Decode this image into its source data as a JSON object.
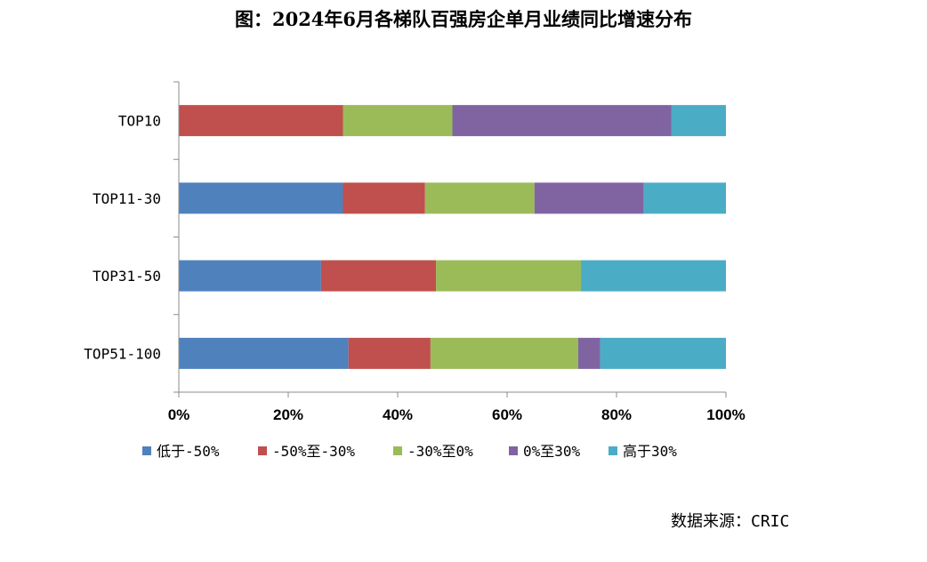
{
  "chart_data": {
    "type": "bar",
    "orientation": "horizontal",
    "stacked": true,
    "title": "图：2024年6月各梯队百强房企单月业绩同比增速分布",
    "categories": [
      "TOP10",
      "TOP11-30",
      "TOP31-50",
      "TOP51-100"
    ],
    "xticks": [
      "0%",
      "20%",
      "40%",
      "60%",
      "80%",
      "100%"
    ],
    "xlim": [
      0,
      100
    ],
    "legend_position": "bottom",
    "series": [
      {
        "name": "低于-50%",
        "color": "#4f81bd",
        "values": [
          0,
          30,
          26,
          31
        ]
      },
      {
        "name": "-50%至-30%",
        "color": "#c0504d",
        "values": [
          30,
          15,
          21,
          15
        ]
      },
      {
        "name": "-30%至0%",
        "color": "#9bbb59",
        "values": [
          20,
          20,
          26.5,
          27
        ]
      },
      {
        "name": "0%至30%",
        "color": "#8064a2",
        "values": [
          40,
          20,
          0,
          4
        ]
      },
      {
        "name": "高于30%",
        "color": "#4bacc6",
        "values": [
          10,
          15,
          26.5,
          23
        ]
      }
    ]
  },
  "source": {
    "label": "数据来源：",
    "value": "CRIC"
  }
}
